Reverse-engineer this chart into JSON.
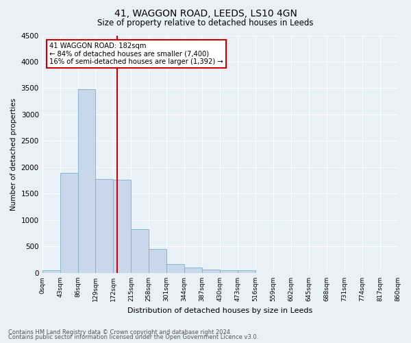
{
  "title": "41, WAGGON ROAD, LEEDS, LS10 4GN",
  "subtitle": "Size of property relative to detached houses in Leeds",
  "xlabel": "Distribution of detached houses by size in Leeds",
  "ylabel": "Number of detached properties",
  "footnote1": "Contains HM Land Registry data © Crown copyright and database right 2024.",
  "footnote2": "Contains public sector information licensed under the Open Government Licence v3.0.",
  "bin_labels": [
    "0sqm",
    "43sqm",
    "86sqm",
    "129sqm",
    "172sqm",
    "215sqm",
    "258sqm",
    "301sqm",
    "344sqm",
    "387sqm",
    "430sqm",
    "473sqm",
    "516sqm",
    "559sqm",
    "602sqm",
    "645sqm",
    "688sqm",
    "731sqm",
    "774sqm",
    "817sqm",
    "860sqm"
  ],
  "bar_heights": [
    50,
    1900,
    3480,
    1780,
    1760,
    830,
    450,
    170,
    100,
    65,
    55,
    50,
    0,
    0,
    0,
    0,
    0,
    0,
    0,
    0
  ],
  "bar_color": "#c8d8ea",
  "bar_edgecolor": "#7aafc8",
  "vline_color": "#cc0000",
  "ylim": [
    0,
    4500
  ],
  "yticks": [
    0,
    500,
    1000,
    1500,
    2000,
    2500,
    3000,
    3500,
    4000,
    4500
  ],
  "annotation_title": "41 WAGGON ROAD: 182sqm",
  "annotation_line1": "← 84% of detached houses are smaller (7,400)",
  "annotation_line2": "16% of semi-detached houses are larger (1,392) →",
  "annotation_box_color": "white",
  "annotation_box_edgecolor": "#cc0000",
  "bg_color": "#e8f0f8",
  "grid_color": "white",
  "title_fontsize": 10,
  "subtitle_fontsize": 8.5
}
